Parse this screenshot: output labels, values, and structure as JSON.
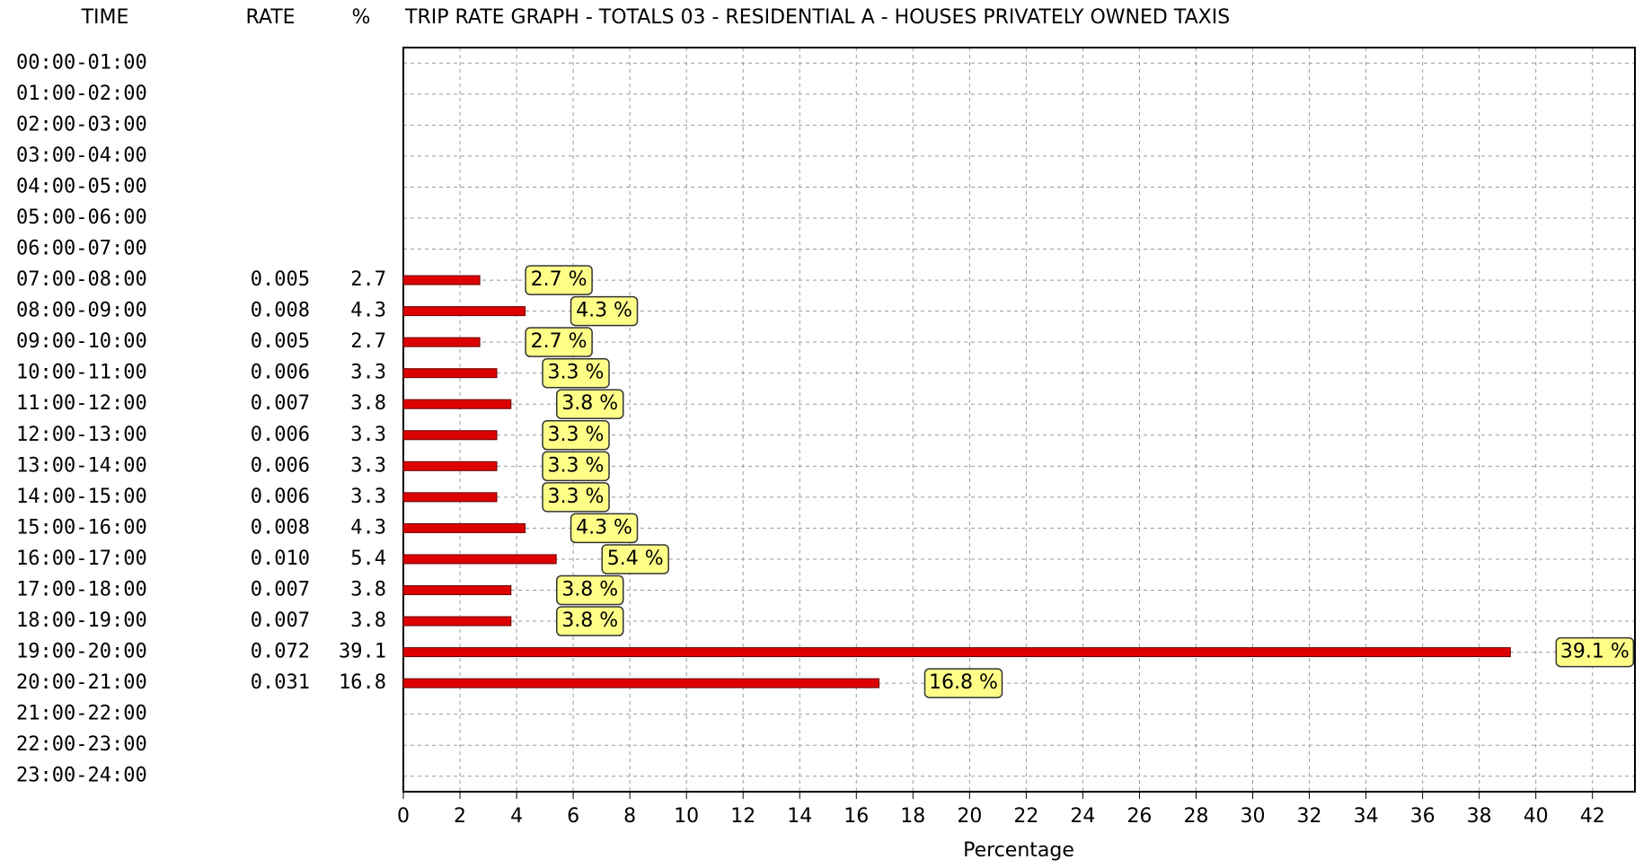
{
  "chart_data": {
    "type": "bar",
    "title": "TRIP RATE GRAPH - TOTALS  03 - RESIDENTIAL  A - HOUSES PRIVATELY OWNED    TAXIS",
    "time_header": "TIME",
    "rate_header": "RATE",
    "percent_header": "%",
    "xlabel": "Percentage",
    "categories": [
      "00:00-01:00",
      "01:00-02:00",
      "02:00-03:00",
      "03:00-04:00",
      "04:00-05:00",
      "05:00-06:00",
      "06:00-07:00",
      "07:00-08:00",
      "08:00-09:00",
      "09:00-10:00",
      "10:00-11:00",
      "11:00-12:00",
      "12:00-13:00",
      "13:00-14:00",
      "14:00-15:00",
      "15:00-16:00",
      "16:00-17:00",
      "17:00-18:00",
      "18:00-19:00",
      "19:00-20:00",
      "20:00-21:00",
      "21:00-22:00",
      "22:00-23:00",
      "23:00-24:00"
    ],
    "rates": [
      null,
      null,
      null,
      null,
      null,
      null,
      null,
      "0.005",
      "0.008",
      "0.005",
      "0.006",
      "0.007",
      "0.006",
      "0.006",
      "0.006",
      "0.008",
      "0.010",
      "0.007",
      "0.007",
      "0.072",
      "0.031",
      null,
      null,
      null
    ],
    "values": [
      null,
      null,
      null,
      null,
      null,
      null,
      null,
      2.7,
      4.3,
      2.7,
      3.3,
      3.8,
      3.3,
      3.3,
      3.3,
      4.3,
      5.4,
      3.8,
      3.8,
      39.1,
      16.8,
      null,
      null,
      null
    ],
    "value_labels": [
      null,
      null,
      null,
      null,
      null,
      null,
      null,
      "2.7 %",
      "4.3 %",
      "2.7 %",
      "3.3 %",
      "3.8 %",
      "3.3 %",
      "3.3 %",
      "3.3 %",
      "4.3 %",
      "5.4 %",
      "3.8 %",
      "3.8 %",
      "39.1 %",
      "16.8 %",
      null,
      null,
      null
    ],
    "color": "#dd0000",
    "label_color": "#ffff88",
    "xlim": [
      0,
      43.5
    ],
    "xticks": [
      0,
      2,
      4,
      6,
      8,
      10,
      12,
      14,
      16,
      18,
      20,
      22,
      24,
      26,
      28,
      30,
      32,
      34,
      36,
      38,
      40,
      42
    ],
    "grid": true
  }
}
